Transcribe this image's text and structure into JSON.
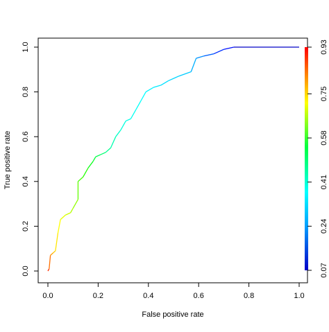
{
  "chart_data": {
    "type": "line",
    "xlabel": "False positive rate",
    "ylabel": "True positive rate",
    "xlim": [
      0,
      1
    ],
    "ylim": [
      0,
      1
    ],
    "xticks": [
      {
        "value": 0,
        "label": "0.0"
      },
      0.2,
      0.4,
      0.6,
      0.8,
      {
        "value": 1,
        "label": "1.0"
      }
    ],
    "yticks": [
      {
        "value": 0,
        "label": "0.0"
      },
      0.2,
      0.4,
      0.6,
      0.8,
      {
        "value": 1,
        "label": "1.0"
      }
    ],
    "y2lim": [
      0.07,
      0.93
    ],
    "y2ticks": [
      0.07,
      0.24,
      0.41,
      0.58,
      0.75,
      0.93
    ],
    "x": [
      0,
      0.005,
      0.01,
      0.02,
      0.03,
      0.04,
      0.05,
      0.07,
      0.09,
      0.1,
      0.12,
      0.12,
      0.14,
      0.16,
      0.18,
      0.19,
      0.21,
      0.23,
      0.25,
      0.27,
      0.29,
      0.31,
      0.33,
      0.35,
      0.37,
      0.39,
      0.42,
      0.45,
      0.48,
      0.52,
      0.57,
      0.59,
      0.62,
      0.66,
      0.7,
      0.74,
      1.0
    ],
    "series": [
      {
        "values": [
          0,
          0.01,
          0.07,
          0.08,
          0.09,
          0.17,
          0.23,
          0.25,
          0.26,
          0.28,
          0.32,
          0.4,
          0.42,
          0.46,
          0.49,
          0.51,
          0.52,
          0.53,
          0.55,
          0.6,
          0.63,
          0.67,
          0.68,
          0.72,
          0.76,
          0.8,
          0.82,
          0.83,
          0.85,
          0.87,
          0.89,
          0.95,
          0.96,
          0.97,
          0.99,
          1.0,
          1.0
        ],
        "colors": [
          "#ff0000",
          "#ff3000",
          "#ff7000",
          "#ffa000",
          "#ffc800",
          "#ffe600",
          "#ffff00",
          "#e6ff00",
          "#ccff00",
          "#b0ff00",
          "#90ff00",
          "#60ff00",
          "#40ff00",
          "#20ff00",
          "#00ff10",
          "#00ff30",
          "#00ff50",
          "#00ff70",
          "#00ff90",
          "#00ffb0",
          "#00ffc8",
          "#00ffdc",
          "#00ffe8",
          "#00fff0",
          "#00fff8",
          "#00ffff",
          "#00f4ff",
          "#00eaff",
          "#00e0ff",
          "#00d6ff",
          "#00ccff",
          "#00b0ff",
          "#0090ff",
          "#0060ff",
          "#0030ff",
          "#0010ff",
          "#0000c8"
        ]
      }
    ]
  }
}
